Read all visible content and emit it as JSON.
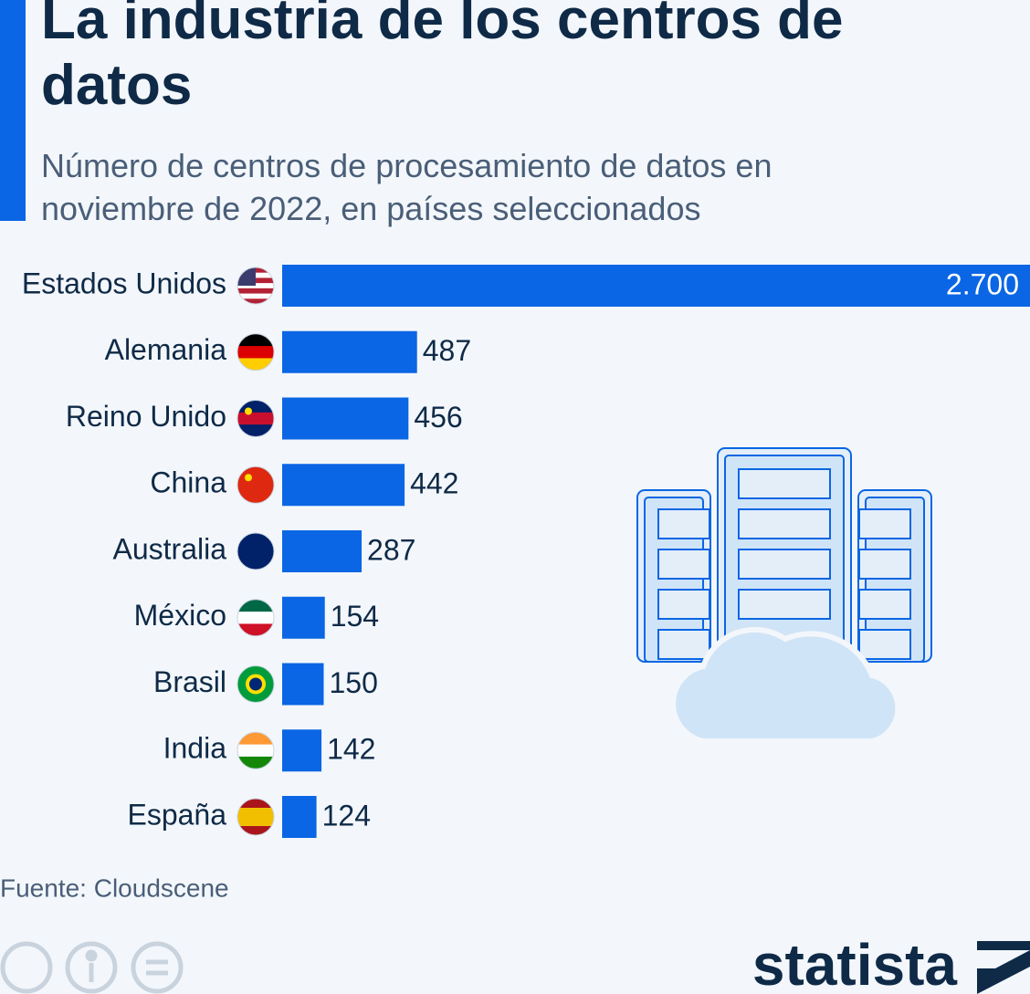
{
  "chart_data": {
    "type": "bar",
    "orientation": "horizontal",
    "title": "La industria de los centros de datos",
    "subtitle": "Número de centros de procesamiento de datos en noviembre de 2022, en países seleccionados",
    "categories": [
      "Estados Unidos",
      "Alemania",
      "Reino Unido",
      "China",
      "Australia",
      "México",
      "Brasil",
      "India",
      "España"
    ],
    "values": [
      2700,
      487,
      456,
      442,
      287,
      154,
      150,
      142,
      124
    ],
    "value_labels": [
      "2.700",
      "487",
      "456",
      "442",
      "287",
      "154",
      "150",
      "142",
      "124"
    ],
    "color": "#0a66e4",
    "source": "Fuente: Cloudscene",
    "brand": "statista"
  }
}
